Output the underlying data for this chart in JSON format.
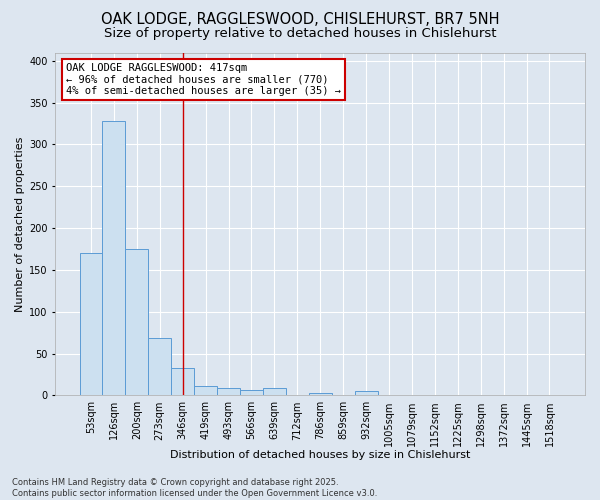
{
  "title_line1": "OAK LODGE, RAGGLESWOOD, CHISLEHURST, BR7 5NH",
  "title_line2": "Size of property relative to detached houses in Chislehurst",
  "xlabel": "Distribution of detached houses by size in Chislehurst",
  "ylabel": "Number of detached properties",
  "categories": [
    "53sqm",
    "126sqm",
    "200sqm",
    "273sqm",
    "346sqm",
    "419sqm",
    "493sqm",
    "566sqm",
    "639sqm",
    "712sqm",
    "786sqm",
    "859sqm",
    "932sqm",
    "1005sqm",
    "1079sqm",
    "1152sqm",
    "1225sqm",
    "1298sqm",
    "1372sqm",
    "1445sqm",
    "1518sqm"
  ],
  "values": [
    170,
    328,
    175,
    69,
    33,
    11,
    9,
    6,
    9,
    0,
    3,
    0,
    5,
    0,
    0,
    0,
    0,
    0,
    0,
    0,
    0
  ],
  "bar_color": "#cce0f0",
  "bar_edge_color": "#5b9bd5",
  "background_color": "#dde6f0",
  "grid_color": "#ffffff",
  "annotation_text_line1": "OAK LODGE RAGGLESWOOD: 417sqm",
  "annotation_text_line2": "← 96% of detached houses are smaller (770)",
  "annotation_text_line3": "4% of semi-detached houses are larger (35) →",
  "annotation_box_color": "#ffffff",
  "annotation_border_color": "#cc0000",
  "vline_color": "#cc0000",
  "vline_x": 4,
  "ylim": [
    0,
    410
  ],
  "yticks": [
    0,
    50,
    100,
    150,
    200,
    250,
    300,
    350,
    400
  ],
  "footer_line1": "Contains HM Land Registry data © Crown copyright and database right 2025.",
  "footer_line2": "Contains public sector information licensed under the Open Government Licence v3.0.",
  "title_fontsize": 10.5,
  "subtitle_fontsize": 9.5,
  "axis_label_fontsize": 8,
  "tick_fontsize": 7,
  "annotation_fontsize": 7.5,
  "footer_fontsize": 6
}
